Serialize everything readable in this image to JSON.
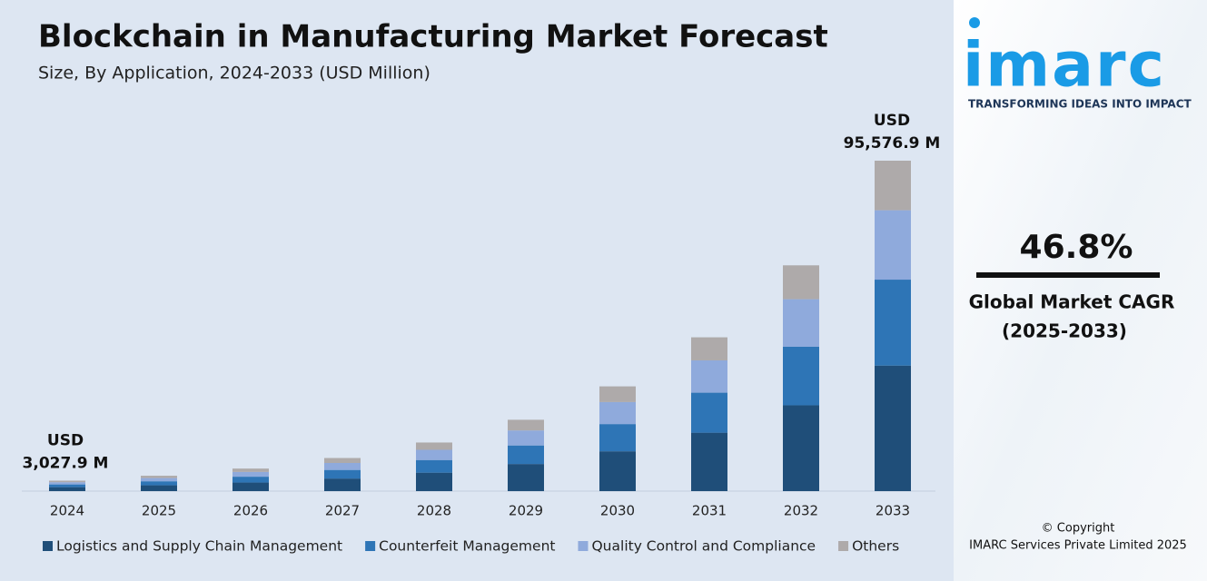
{
  "chart_data": {
    "type": "stacked-bar",
    "title": "Blockchain in Manufacturing Market Forecast",
    "subtitle": "Size, By Application, 2024-2033 (USD Million)",
    "categories": [
      "2024",
      "2025",
      "2026",
      "2027",
      "2028",
      "2029",
      "2030",
      "2031",
      "2032",
      "2033"
    ],
    "series": [
      {
        "name": "Logistics and Supply Chain Management",
        "color": "#1f4e79",
        "values": [
          1150.6,
          1690,
          2480,
          3640,
          5345,
          7845,
          11515,
          16905,
          24820,
          36319.2
        ]
      },
      {
        "name": "Counterfeit Management",
        "color": "#2e75b6",
        "values": [
          787.3,
          1155,
          1695,
          2490,
          3655,
          5365,
          7880,
          11565,
          16980,
          24850.0
        ]
      },
      {
        "name": "Quality Control and Compliance",
        "color": "#8faadc",
        "values": [
          635.8,
          935,
          1370,
          2010,
          2950,
          4335,
          6360,
          9345,
          13715,
          20071.1
        ]
      },
      {
        "name": "Others",
        "color": "#aeaaaa",
        "values": [
          454.2,
          665,
          980,
          1440,
          2110,
          3095,
          4545,
          6675,
          9795,
          14336.6
        ]
      }
    ],
    "annotations": [
      [
        "USD",
        "3,027.9 M"
      ],
      [
        "USD",
        "95,576.9 M"
      ]
    ],
    "legend": "bottom"
  },
  "sidebar": {
    "logo": "imarc",
    "tagline": "TRANSFORMING IDEAS INTO IMPACT",
    "cagr": "46.8%",
    "cagr_label": [
      "Global Market CAGR",
      "(2025-2033)"
    ],
    "copyright": [
      "© Copyright",
      "IMARC Services Private Limited 2025"
    ]
  }
}
